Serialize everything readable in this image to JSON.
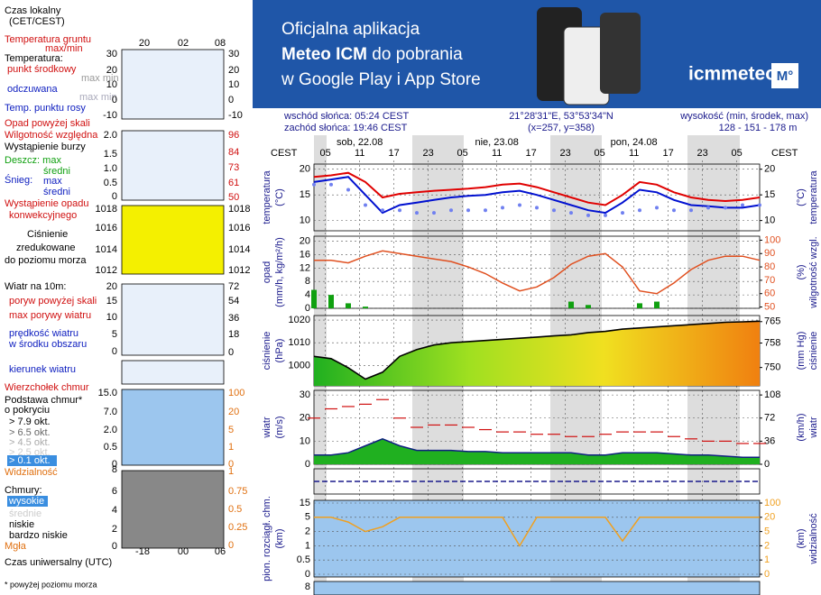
{
  "banner": {
    "line1": "Oficjalna aplikacja",
    "line2a": "Meteo ICM",
    "line2b": " do pobrania",
    "line3": "w Google Play i App Store",
    "brand": "icmmeteo",
    "badge": "M°"
  },
  "info": {
    "sunrise": "wschód słońca: 05:24 CEST",
    "sunset": "zachód słońca: 19:46 CEST",
    "coords": "21°28'31\"E, 53°53'34\"N",
    "grid": "(x=257, y=358)",
    "height_title": "wysokość (min, środek, max)",
    "height": "128 - 151 - 178 m"
  },
  "legend": [
    "Czas lokalny",
    "(CET/CEST)",
    "20",
    "02",
    "08",
    "Temperatura gruntu",
    "max/min",
    "Temperatura:",
    "punkt środkowy",
    "max min",
    "odczuwana",
    "max min",
    "Temp. punktu rosy",
    "30",
    "20",
    "10",
    "0",
    "-10",
    "30",
    "20",
    "10",
    "0",
    "-10",
    "Opad powyżej skali",
    "Wilgotność względna",
    "Wystąpienie burzy",
    "Deszcz: max",
    "średni",
    "Śnieg:",
    "max",
    "średni",
    "Wystąpienie opadu",
    "konwekcyjnego",
    "2.0",
    "1.5",
    "1.0",
    "0.5",
    "0",
    "96",
    "84",
    "73",
    "61",
    "50",
    "1018",
    "1016",
    "1014",
    "1012",
    "1018",
    "1016",
    "1014",
    "1012",
    "Ciśnienie",
    "zredukowane",
    "do poziomu morza",
    "Wiatr na 10m:",
    "poryw powyżej skali",
    "max porywy wiatru",
    "prędkość wiatru",
    "w środku obszaru",
    "20",
    "15",
    "10",
    "5",
    "0",
    "72",
    "54",
    "36",
    "18",
    "0",
    "kierunek wiatru",
    "Wierzchołek chmur",
    "Podstawa chmur*",
    "o pokryciu",
    "> 7.9 okt.",
    "> 6.5 okt.",
    "> 4.5 okt.",
    "> 2.5 okt.",
    "> 0.1 okt.",
    "15.0",
    "7.0",
    "2.0",
    "0.5",
    "0",
    "100",
    "20",
    "5",
    "1",
    "0",
    "Widzialność",
    "8",
    "1",
    "Chmury:",
    "wysokie",
    "średnie",
    "niskie",
    "bardzo niskie",
    "Mgła",
    "6",
    "4",
    "2",
    "0",
    "0.75",
    "0.5",
    "0.25",
    "0",
    "-18",
    "00",
    "06",
    "Czas uniwersalny (UTC)",
    "* powyżej poziomu morza"
  ],
  "time": {
    "zone": "CEST",
    "days": [
      "sob, 22.08",
      "nie, 23.08",
      "pon, 24.08"
    ],
    "xlim": [
      1,
      79
    ],
    "xticks": [
      {
        "value": 3,
        "label": "05"
      },
      {
        "value": 9,
        "label": "11"
      },
      {
        "value": 15,
        "label": "17"
      },
      {
        "value": 21,
        "label": "23"
      },
      {
        "value": 27,
        "label": "05"
      },
      {
        "value": 33,
        "label": "11"
      },
      {
        "value": 39,
        "label": "17"
      },
      {
        "value": 45,
        "label": "23"
      },
      {
        "value": 51,
        "label": "05"
      },
      {
        "value": 57,
        "label": "11"
      },
      {
        "value": 63,
        "label": "17"
      },
      {
        "value": 69,
        "label": "23"
      },
      {
        "value": 75,
        "label": "05"
      }
    ],
    "x": [
      1,
      4,
      7,
      10,
      13,
      16,
      19,
      22,
      25,
      28,
      31,
      34,
      37,
      40,
      43,
      46,
      49,
      52,
      55,
      58,
      61,
      64,
      67,
      70,
      73,
      76,
      79
    ]
  },
  "chart_data": [
    {
      "type": "line",
      "ylabel": "temperatura",
      "yunit": "(°C)",
      "y2label": "temperatura",
      "y2unit": "(°C)",
      "ylim": [
        8,
        21
      ],
      "yticks": [
        10,
        15,
        20
      ],
      "y2ticks": [
        10,
        15,
        20
      ],
      "grid": true,
      "series": [
        {
          "name": "punkt środkowy",
          "color": "#e00000",
          "values": [
            18.5,
            18.8,
            19.3,
            17.5,
            14.5,
            15.2,
            15.5,
            15.8,
            16,
            16.2,
            16.5,
            17,
            17.2,
            16.5,
            15.5,
            14.5,
            13.5,
            13,
            15,
            17.5,
            17,
            15.5,
            14.5,
            14,
            13.8,
            14,
            14.5
          ]
        },
        {
          "name": "odczuwana",
          "color": "#0010d0",
          "values": [
            17.5,
            18,
            18.5,
            15,
            11.5,
            13,
            13.5,
            14,
            14.5,
            14.8,
            15,
            15.5,
            15.8,
            15,
            14,
            13,
            12,
            11.5,
            13.5,
            16,
            15.5,
            14,
            13,
            12.8,
            12.5,
            12.5,
            13
          ]
        },
        {
          "name": "Temp. punktu rosy",
          "color": "#7080f0",
          "marker": "dot",
          "values": [
            17,
            17,
            16,
            13,
            12,
            12,
            11.5,
            11.5,
            12,
            12,
            12,
            12.5,
            13,
            12.5,
            12,
            11.5,
            11,
            11,
            11.5,
            12,
            12.5,
            12,
            12,
            12.5,
            12.5,
            13,
            13
          ]
        }
      ]
    },
    {
      "type": "bar",
      "ylabel": "opad",
      "yunit": "(mm/h, kg/m²/h)",
      "y2label": "wilgotność wzgl.",
      "y2unit": "(%)",
      "ylim": [
        0,
        21.5
      ],
      "yticks": [
        0,
        4,
        8,
        12,
        16,
        20
      ],
      "y2lim": [
        49,
        103
      ],
      "y2ticks": [
        50,
        60,
        70,
        80,
        90,
        100
      ],
      "grid": true,
      "series": [
        {
          "name": "opad",
          "color": "#10a010",
          "values": [
            5.5,
            4,
            1.5,
            0.5,
            0,
            0,
            0,
            0,
            0,
            0,
            0,
            0,
            0,
            0,
            0,
            2,
            1,
            0,
            0,
            1.5,
            2,
            0,
            0,
            0,
            0,
            0,
            0
          ]
        },
        {
          "name": "Wilgotność względna",
          "color": "#e05020",
          "axis": "y2",
          "values": [
            85,
            85,
            83,
            88,
            92,
            90,
            88,
            86,
            84,
            80,
            75,
            68,
            62,
            65,
            72,
            82,
            88,
            90,
            80,
            62,
            60,
            68,
            78,
            85,
            88,
            88,
            85
          ]
        }
      ]
    },
    {
      "type": "area",
      "ylabel": "ciśnienie",
      "yunit": "(hPa)",
      "y2label": "ciśnienie",
      "y2unit": "(mm Hg)",
      "ylim": [
        991,
        1022
      ],
      "yticks": [
        1000,
        1010,
        1020
      ],
      "y2lim": [
        744,
        767
      ],
      "y2ticks": [
        750,
        758,
        765
      ],
      "grid": true,
      "series": [
        {
          "name": "ciśnienie",
          "color": "#000000",
          "values": [
            1004,
            1003,
            999,
            994,
            997,
            1004,
            1007,
            1009,
            1010,
            1010.5,
            1011,
            1011.5,
            1012,
            1012.5,
            1013,
            1013.5,
            1014.5,
            1015,
            1016,
            1016.5,
            1017,
            1017.5,
            1018,
            1018.5,
            1019,
            1019.2,
            1019.5
          ]
        }
      ]
    },
    {
      "type": "wind",
      "ylabel": "wiatr",
      "yunit": "(m/s)",
      "y2label": "wiatr",
      "y2unit": "(km/h)",
      "ylim": [
        0,
        32
      ],
      "yticks": [
        0,
        10,
        20,
        30
      ],
      "y2lim": [
        0,
        115.2
      ],
      "y2ticks": [
        0,
        36,
        72,
        108
      ],
      "grid": true,
      "series": [
        {
          "name": "prędkość wiatru",
          "color": "#20b020",
          "values": [
            4,
            4,
            5,
            8,
            11,
            8,
            6,
            6,
            6,
            5.5,
            5.5,
            5,
            5,
            5,
            5,
            5,
            4,
            4,
            5,
            5,
            5,
            4.5,
            4,
            4,
            3.5,
            3,
            3
          ]
        },
        {
          "name": "max porywy wiatru",
          "color": "#d01010",
          "values": [
            20,
            24,
            25,
            26,
            28,
            20,
            16,
            17,
            17,
            16,
            15,
            14,
            14,
            13,
            13,
            12,
            12,
            13,
            14,
            14,
            14,
            12,
            11,
            10,
            10,
            9,
            9
          ]
        }
      ]
    },
    {
      "type": "clouds",
      "ylabel": "pion. rozciągł. chm.",
      "yunit": "(km)",
      "y2label": "widzialność",
      "y2unit": "(km)",
      "yticks": [
        15.0,
        5.0,
        2.0,
        1.0,
        0.5,
        0.0
      ],
      "y2ticks": [
        100,
        20,
        5,
        2,
        1,
        0
      ],
      "grid": true,
      "series": [
        {
          "name": "Widzialność",
          "color": "#f0a020",
          "axis": "y2",
          "values": [
            20,
            20,
            15,
            5,
            10,
            20,
            20,
            20,
            20,
            20,
            20,
            20,
            2,
            20,
            20,
            20,
            20,
            20,
            3,
            20,
            20,
            20,
            20,
            20,
            20,
            20,
            20
          ]
        }
      ]
    }
  ],
  "bottom": {
    "label": "8"
  }
}
